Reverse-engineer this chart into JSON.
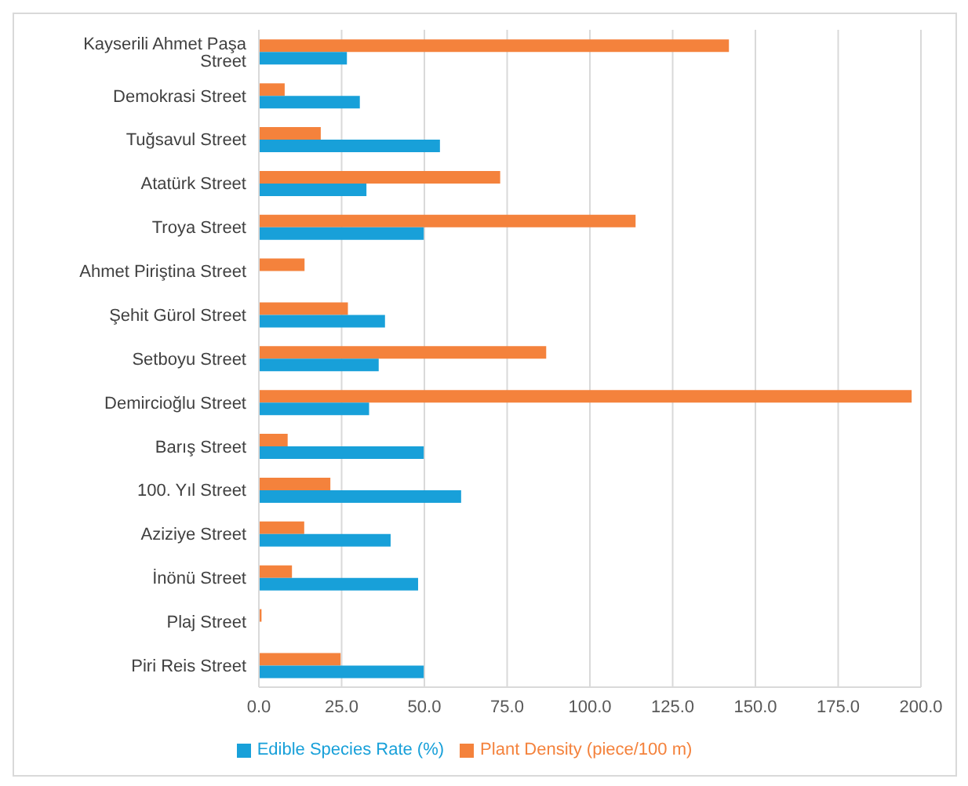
{
  "chart_data": {
    "type": "bar",
    "orientation": "horizontal",
    "categories": [
      "Kayserili Ahmet Paşa Street",
      "Demokrasi Street",
      "Tuğsavul Street",
      "Atatürk Street",
      "Troya Street",
      "Ahmet Piriştina Street",
      "Şehit Gürol Street",
      "Setboyu Street",
      "Demircioğlu Street",
      "Barış Street",
      "100. Yıl Street",
      "Aziziye Street",
      "İnönü Street",
      "Plaj  Street",
      "Piri Reis Street"
    ],
    "series": [
      {
        "name": "Plant Density (piece/100 m)",
        "color": "#f4823c",
        "values": [
          142.0,
          7.8,
          18.7,
          72.9,
          113.8,
          13.8,
          26.9,
          86.8,
          197.2,
          8.7,
          21.6,
          13.7,
          10.0,
          0.8,
          24.7
        ]
      },
      {
        "name": "Edible Species Rate (%)",
        "color": "#18a0d9",
        "values": [
          26.6,
          30.5,
          54.7,
          32.5,
          49.8,
          null,
          38.1,
          36.2,
          33.3,
          49.8,
          61.1,
          39.8,
          48.1,
          null,
          49.8
        ]
      }
    ],
    "xlim": [
      0,
      200
    ],
    "xticks": [
      {
        "value": 0,
        "label": "0.0"
      },
      {
        "value": 25,
        "label": "25.0"
      },
      {
        "value": 50,
        "label": "50.0"
      },
      {
        "value": 75,
        "label": "75.0"
      },
      {
        "value": 100,
        "label": "100.0"
      },
      {
        "value": 125,
        "label": "125.0"
      },
      {
        "value": 150,
        "label": "150.0"
      },
      {
        "value": 175,
        "label": "175.0"
      },
      {
        "value": 200,
        "label": "200.0"
      }
    ],
    "grid": "x",
    "legend": "bottom"
  }
}
